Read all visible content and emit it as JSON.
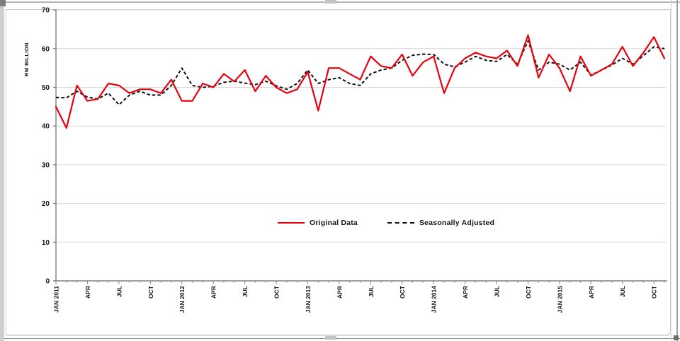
{
  "chart_data": {
    "type": "line",
    "title": "",
    "ylabel": "RM BILLION",
    "ylim": [
      0,
      70
    ],
    "ytick_step": 10,
    "y_tick_labels": [
      "0",
      "10",
      "20",
      "30",
      "40",
      "50",
      "60",
      "70"
    ],
    "x_start": "Jan 2011",
    "x_end": "Nov 2015",
    "frequency": "monthly",
    "x_tick_interval_months": 3,
    "x_tick_labels": [
      "JAN 2011",
      "APR",
      "JUL",
      "OCT",
      "JAN 2012",
      "APR",
      "JUL",
      "OCT",
      "JAN 2013",
      "APR",
      "JUL",
      "OCT",
      "JAN 2014",
      "APR",
      "JUL",
      "OCT",
      "JAN 2015",
      "APR",
      "JUL",
      "OCT"
    ],
    "grid": "horizontal",
    "legend_position": "center-inside",
    "colors": {
      "original": "#e8000d",
      "seasonally_adjusted": "#111111",
      "gridline": "#d9d9d9",
      "axis": "#808080",
      "tick_text": "#15151f"
    },
    "series": [
      {
        "name": "Original Data",
        "style": "solid",
        "values": [
          45,
          39.5,
          50.5,
          46.5,
          47,
          51,
          50.5,
          48.5,
          49.5,
          49.5,
          48.5,
          52,
          46.5,
          46.5,
          51,
          50,
          53.5,
          51.5,
          54.5,
          49,
          53,
          50,
          48.5,
          49.5,
          54,
          44,
          55,
          55,
          53.5,
          52,
          58,
          55.5,
          55,
          58.5,
          53,
          56.5,
          58,
          48.5,
          55,
          57.5,
          59,
          58,
          57.5,
          59.5,
          55.5,
          63.5,
          52.5,
          58.5,
          55,
          49,
          58,
          53,
          54.5,
          56,
          60.5,
          55.5,
          59,
          63,
          57.5
        ]
      },
      {
        "name": "Seasonally Adjusted",
        "style": "dashed",
        "values": [
          47.4,
          47.3,
          49,
          47.5,
          47,
          48.5,
          45.5,
          48,
          49,
          48,
          48,
          50.5,
          55,
          50.5,
          50,
          50.3,
          51.3,
          51.6,
          51.1,
          50.7,
          51.6,
          50.4,
          49.5,
          51,
          54.5,
          51,
          52,
          52.5,
          51,
          50.5,
          53.5,
          54.5,
          55,
          57,
          58.3,
          58.6,
          58.5,
          56,
          55.3,
          56.5,
          58,
          57,
          56.7,
          58.5,
          56,
          62,
          54.5,
          56.5,
          56,
          54.5,
          56.5,
          53.2,
          54.4,
          55.8,
          57.5,
          56,
          58.2,
          60.5,
          60
        ]
      }
    ]
  }
}
